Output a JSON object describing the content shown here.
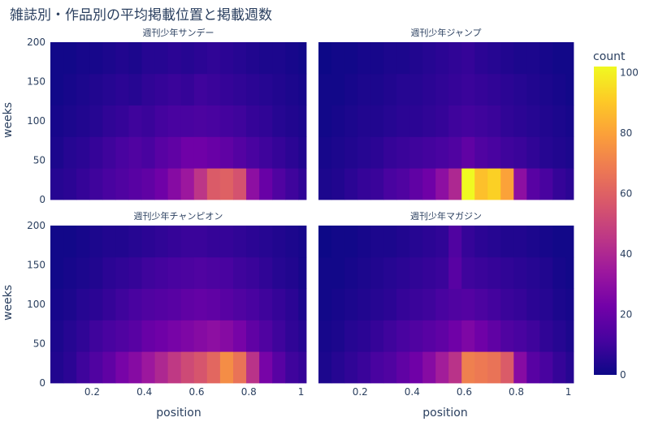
{
  "chart_data": {
    "type": "heatmap",
    "title": "雑誌別・作品別の平均掲載位置と掲載週数",
    "xlabel": "position",
    "ylabel": "weeks",
    "x_ticks": [
      "0.2",
      "0.4",
      "0.6",
      "0.8",
      "1"
    ],
    "x_tick_values": [
      0.2,
      0.4,
      0.6,
      0.8,
      1.0
    ],
    "y_ticks": [
      "0",
      "50",
      "100",
      "150",
      "200"
    ],
    "y_tick_values": [
      0,
      50,
      100,
      150,
      200
    ],
    "xlim": [
      0.04,
      1.02
    ],
    "ylim": [
      0,
      200
    ],
    "x_bins": [
      0.04,
      0.09,
      0.14,
      0.19,
      0.24,
      0.29,
      0.34,
      0.39,
      0.44,
      0.49,
      0.54,
      0.59,
      0.64,
      0.69,
      0.74,
      0.79,
      0.84,
      0.89,
      0.94,
      0.99,
      1.02
    ],
    "y_bins": [
      0,
      40,
      80,
      120,
      160,
      200
    ],
    "colorbar": {
      "title": "count",
      "ticks": [
        "0",
        "20",
        "40",
        "60",
        "80",
        "100"
      ],
      "tick_values": [
        0,
        20,
        40,
        60,
        80,
        100
      ],
      "range": [
        0,
        102
      ],
      "colors": [
        "#0d0887",
        "#46039f",
        "#7201a8",
        "#9c179e",
        "#bd3786",
        "#d8576b",
        "#ed7953",
        "#fb9f3a",
        "#fdca26",
        "#f0f921"
      ]
    },
    "panels": [
      {
        "name": "週刊少年サンデー",
        "counts": [
          [
            5,
            6,
            8,
            10,
            12,
            14,
            16,
            18,
            22,
            28,
            34,
            45,
            58,
            60,
            55,
            30,
            20,
            14,
            10,
            7
          ],
          [
            3,
            5,
            6,
            8,
            10,
            12,
            14,
            12,
            16,
            18,
            22,
            22,
            20,
            18,
            15,
            12,
            10,
            8,
            6,
            4
          ],
          [
            2,
            3,
            4,
            5,
            7,
            8,
            10,
            9,
            11,
            12,
            12,
            13,
            12,
            11,
            10,
            8,
            7,
            5,
            4,
            3
          ],
          [
            1,
            2,
            3,
            4,
            5,
            6,
            5,
            7,
            8,
            9,
            8,
            10,
            9,
            8,
            7,
            6,
            5,
            4,
            3,
            2
          ],
          [
            1,
            1,
            2,
            2,
            3,
            4,
            3,
            5,
            5,
            6,
            5,
            6,
            7,
            6,
            5,
            4,
            3,
            3,
            2,
            1
          ]
        ]
      },
      {
        "name": "週刊少年ジャンプ",
        "counts": [
          [
            3,
            4,
            6,
            8,
            9,
            12,
            14,
            18,
            22,
            30,
            40,
            102,
            88,
            92,
            80,
            30,
            16,
            12,
            8,
            6
          ],
          [
            2,
            3,
            4,
            5,
            6,
            8,
            9,
            10,
            11,
            12,
            14,
            18,
            14,
            12,
            10,
            9,
            7,
            5,
            4,
            3
          ],
          [
            1,
            2,
            3,
            4,
            4,
            5,
            6,
            6,
            7,
            8,
            10,
            11,
            10,
            9,
            7,
            6,
            5,
            4,
            3,
            2
          ],
          [
            1,
            1,
            2,
            3,
            3,
            4,
            5,
            5,
            6,
            7,
            8,
            9,
            8,
            7,
            6,
            5,
            4,
            3,
            2,
            1
          ],
          [
            0,
            1,
            1,
            2,
            2,
            3,
            3,
            4,
            5,
            6,
            7,
            8,
            6,
            5,
            4,
            3,
            3,
            2,
            1,
            1
          ]
        ]
      },
      {
        "name": "週刊少年チャンピオン",
        "counts": [
          [
            4,
            6,
            10,
            14,
            18,
            24,
            28,
            34,
            40,
            46,
            52,
            56,
            62,
            74,
            66,
            44,
            24,
            16,
            10,
            8
          ],
          [
            3,
            5,
            7,
            10,
            12,
            14,
            16,
            20,
            22,
            24,
            26,
            28,
            30,
            28,
            24,
            18,
            14,
            10,
            7,
            5
          ],
          [
            2,
            3,
            5,
            6,
            8,
            10,
            12,
            14,
            15,
            16,
            18,
            19,
            18,
            16,
            14,
            12,
            10,
            8,
            6,
            3
          ],
          [
            1,
            2,
            3,
            4,
            6,
            7,
            8,
            10,
            11,
            12,
            13,
            14,
            13,
            12,
            10,
            9,
            7,
            5,
            4,
            2
          ],
          [
            1,
            1,
            2,
            3,
            4,
            4,
            5,
            6,
            7,
            8,
            9,
            9,
            8,
            8,
            7,
            6,
            5,
            4,
            3,
            2
          ]
        ]
      },
      {
        "name": "週刊少年マガジン",
        "counts": [
          [
            3,
            5,
            7,
            9,
            12,
            14,
            18,
            22,
            28,
            36,
            44,
            70,
            68,
            66,
            58,
            28,
            16,
            12,
            8,
            5
          ],
          [
            2,
            3,
            5,
            6,
            8,
            10,
            12,
            14,
            16,
            18,
            22,
            26,
            22,
            18,
            14,
            12,
            10,
            7,
            5,
            3
          ],
          [
            1,
            2,
            3,
            4,
            5,
            6,
            8,
            9,
            10,
            12,
            14,
            15,
            13,
            11,
            9,
            8,
            6,
            5,
            3,
            2
          ],
          [
            1,
            1,
            2,
            3,
            4,
            5,
            6,
            7,
            8,
            9,
            16,
            10,
            9,
            8,
            7,
            6,
            5,
            4,
            2,
            1
          ],
          [
            0,
            1,
            1,
            2,
            3,
            3,
            4,
            5,
            6,
            7,
            14,
            8,
            6,
            5,
            4,
            4,
            3,
            2,
            1,
            1
          ]
        ]
      }
    ]
  }
}
